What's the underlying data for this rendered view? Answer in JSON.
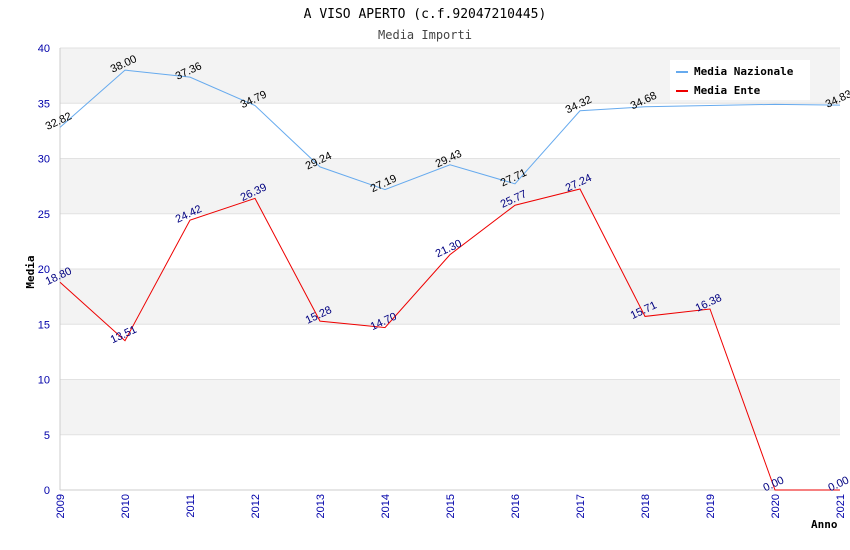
{
  "chart_data": {
    "type": "line",
    "title": "A VISO APERTO (c.f.92047210445)",
    "subtitle": "Media Importi",
    "xlabel": "Anno",
    "ylabel": "Media",
    "categories": [
      "2009",
      "2010",
      "2011",
      "2012",
      "2013",
      "2014",
      "2015",
      "2016",
      "2017",
      "2018",
      "2019",
      "2020",
      "2021"
    ],
    "ylim": [
      0,
      40
    ],
    "yticks": [
      0,
      5,
      10,
      15,
      20,
      25,
      30,
      35,
      40
    ],
    "grid": "horizontal bands",
    "legend_position": "top-right",
    "series": [
      {
        "name": "Media Nazionale",
        "color": "#66aaee",
        "values": [
          32.82,
          38.0,
          37.36,
          34.79,
          29.24,
          27.19,
          29.43,
          27.71,
          34.32,
          34.68,
          34.8,
          34.9,
          34.83
        ],
        "labels": [
          "32.82",
          "38.00",
          "37.36",
          "34.79",
          "29.24",
          "27.19",
          "29.43",
          "27.71",
          "34.32",
          "34.68",
          "",
          "",
          "34.83"
        ]
      },
      {
        "name": "Media Ente",
        "color": "#ee0000",
        "values": [
          18.8,
          13.51,
          24.42,
          26.39,
          15.28,
          14.7,
          21.3,
          25.77,
          27.24,
          15.71,
          16.38,
          0.0,
          0.0
        ],
        "labels": [
          "18.80",
          "13.51",
          "24.42",
          "26.39",
          "15.28",
          "14.70",
          "21.30",
          "25.77",
          "27.24",
          "15.71",
          "16.38",
          "0.00",
          "0.00"
        ]
      }
    ]
  }
}
